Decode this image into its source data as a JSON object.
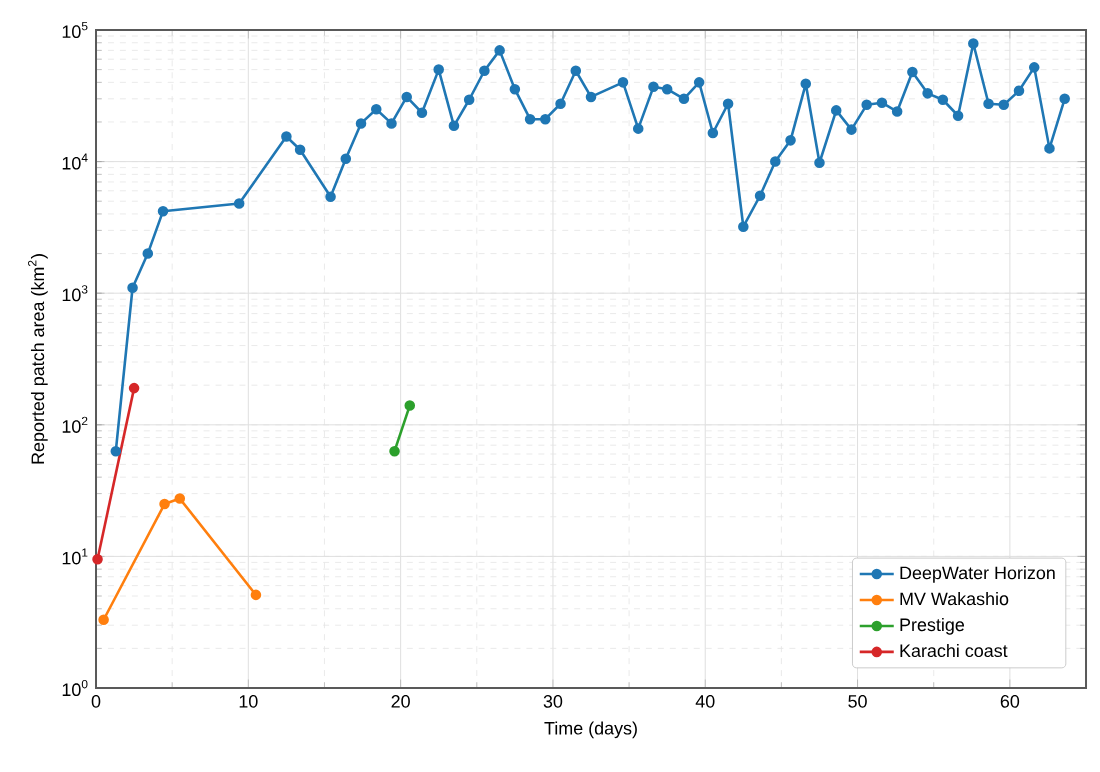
{
  "chart_data": {
    "type": "line",
    "xlabel": "Time (days)",
    "ylabel": "Reported patch area (km$^{2}$)",
    "xlim": [
      0,
      65
    ],
    "xticks": [
      0,
      10,
      20,
      30,
      40,
      50,
      60
    ],
    "ylim": [
      1,
      100000
    ],
    "yticks": [
      {
        "value": 1,
        "label": "10$^{0}$"
      },
      {
        "value": 10,
        "label": "10$^{1}$"
      },
      {
        "value": 100,
        "label": "10$^{2}$"
      },
      {
        "value": 1000,
        "label": "10$^{3}$"
      },
      {
        "value": 10000,
        "label": "10$^{4}$"
      },
      {
        "value": 100000,
        "label": "10$^{5}$"
      }
    ],
    "log": "y",
    "grid": true,
    "legend": "bottom right",
    "marker": "circle",
    "line_style": "solid",
    "series": [
      {
        "name": "DeepWater Horizon",
        "color": "#1f77b4",
        "x": [
          1.3,
          2.4,
          3.4,
          4.4,
          9.4,
          12.5,
          13.4,
          15.4,
          16.4,
          17.4,
          18.4,
          19.4,
          20.4,
          21.4,
          22.5,
          23.5,
          24.5,
          25.5,
          26.5,
          27.5,
          28.5,
          29.5,
          30.5,
          31.5,
          32.5,
          34.6,
          35.6,
          36.6,
          37.5,
          38.6,
          39.6,
          40.5,
          41.5,
          42.5,
          43.6,
          44.6,
          45.6,
          46.6,
          47.5,
          48.6,
          49.6,
          50.6,
          51.6,
          52.6,
          53.6,
          54.6,
          55.6,
          56.6,
          57.6,
          58.6,
          59.6,
          60.6,
          61.6,
          62.6,
          63.6
        ],
        "values": [
          63,
          1100,
          2000,
          4200,
          4800,
          15500,
          12300,
          5400,
          10500,
          19500,
          25000,
          19500,
          31000,
          23500,
          50000,
          18700,
          29500,
          49000,
          70000,
          35500,
          21000,
          21000,
          27500,
          49000,
          31000,
          40000,
          17800,
          37000,
          35500,
          30000,
          40000,
          16500,
          27500,
          3200,
          5500,
          10000,
          14500,
          39000,
          9800,
          24500,
          17500,
          27000,
          28000,
          24000,
          48000,
          33000,
          29500,
          22300,
          79000,
          27500,
          27000,
          34500,
          52000,
          12600,
          30000
        ]
      },
      {
        "name": "MV Wakashio",
        "color": "#ff7f0e",
        "x": [
          0.5,
          4.5,
          5.5,
          10.5
        ],
        "values": [
          3.3,
          25,
          27.5,
          5.1
        ]
      },
      {
        "name": "Prestige",
        "color": "#2ca02c",
        "x": [
          19.6,
          20.6
        ],
        "values": [
          63,
          140
        ]
      },
      {
        "name": "Karachi coast",
        "color": "#d62728",
        "x": [
          0.1,
          2.5
        ],
        "values": [
          9.5,
          190
        ]
      }
    ]
  }
}
